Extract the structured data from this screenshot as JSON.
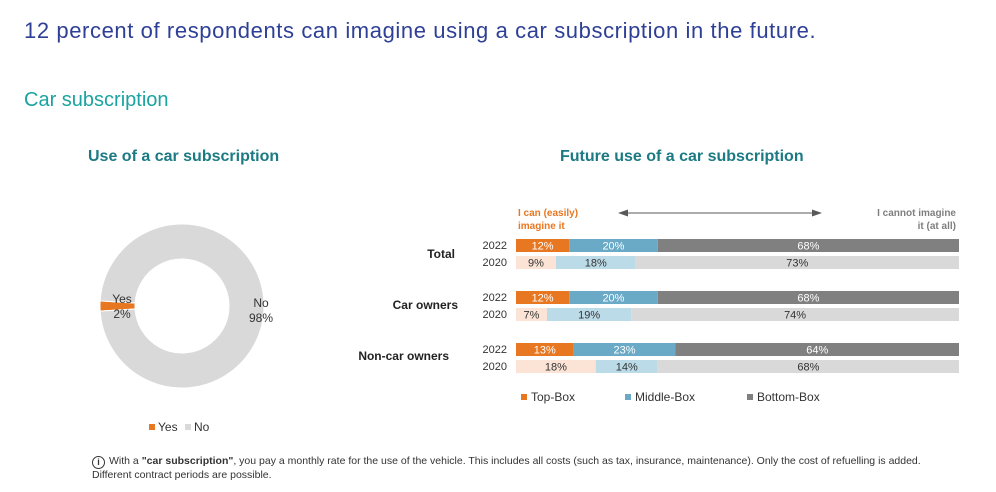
{
  "headline": "12 percent of respondents can imagine using a car subscription in the future.",
  "section_title": "Car subscription",
  "chart_data": [
    {
      "type": "pie",
      "title": "Use of a car subscription",
      "categories": [
        "Yes",
        "No"
      ],
      "values": [
        2,
        98
      ],
      "value_labels": [
        "2%",
        "98%"
      ],
      "colors": [
        "#e87722",
        "#d9d9d9"
      ],
      "legend": [
        "Yes",
        "No"
      ],
      "legend_position": "bottom"
    },
    {
      "type": "bar",
      "orientation": "horizontal",
      "stacked": true,
      "title": "Future use of a car subscription",
      "scale_left_label": [
        "I can (easily)",
        "imagine it"
      ],
      "scale_right_label": [
        "I cannot imagine",
        "it (at all)"
      ],
      "groups": [
        "Total",
        "Car owners",
        "Non-car owners"
      ],
      "rows": [
        {
          "group": "Total",
          "year": "2022",
          "values": [
            12,
            20,
            68
          ],
          "labels": [
            "12%",
            "20%",
            "68%"
          ]
        },
        {
          "group": "Total",
          "year": "2020",
          "values": [
            9,
            18,
            73
          ],
          "labels": [
            "9%",
            "18%",
            "73%"
          ]
        },
        {
          "group": "Car owners",
          "year": "2022",
          "values": [
            12,
            20,
            68
          ],
          "labels": [
            "12%",
            "20%",
            "68%"
          ]
        },
        {
          "group": "Car owners",
          "year": "2020",
          "values": [
            7,
            19,
            74
          ],
          "labels": [
            "7%",
            "19%",
            "74%"
          ]
        },
        {
          "group": "Non-car owners",
          "year": "2022",
          "values": [
            13,
            23,
            64
          ],
          "labels": [
            "13%",
            "23%",
            "64%"
          ]
        },
        {
          "group": "Non-car owners",
          "year": "2020",
          "values": [
            18,
            14,
            68
          ],
          "labels": [
            "18%",
            "14%",
            "68%"
          ]
        }
      ],
      "series": [
        {
          "name": "Top-Box",
          "color_2022": "#e87722",
          "color_2020": "#fbe4d5"
        },
        {
          "name": "Middle-Box",
          "color_2022": "#6aaac7",
          "color_2020": "#bcdbe8"
        },
        {
          "name": "Bottom-Box",
          "color_2022": "#808080",
          "color_2020": "#d9d9d9"
        }
      ],
      "legend_position": "bottom",
      "xlim": [
        0,
        100
      ]
    }
  ],
  "footnote": {
    "icon": "info-icon",
    "prefix": "With a ",
    "term": "\"car subscription\"",
    "suffix": ", you pay a monthly rate for the use of the vehicle. This includes all costs (such as tax, insurance, maintenance). Only the cost of refuelling is added. Different contract periods are possible."
  }
}
